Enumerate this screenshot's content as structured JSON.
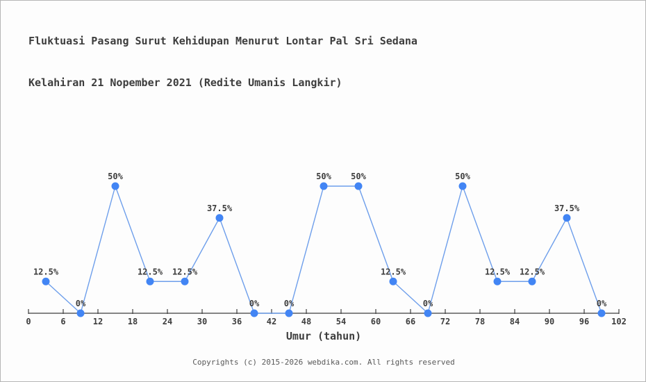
{
  "title": {
    "line1": "Fluktuasi Pasang Surut Kehidupan Menurut Lontar Pal Sri Sedana",
    "line2": "Kelahiran 21 Nopember 2021 (Redite Umanis Langkir)"
  },
  "chart_data": {
    "type": "line",
    "title": "Fluktuasi Pasang Surut Kehidupan Menurut Lontar Pal Sri Sedana Kelahiran 21 Nopember 2021 (Redite Umanis Langkir)",
    "xlabel": "Umur (tahun)",
    "ylabel": "",
    "x": [
      3,
      9,
      15,
      21,
      27,
      33,
      39,
      45,
      51,
      57,
      63,
      69,
      75,
      81,
      87,
      93,
      99
    ],
    "values": [
      12.5,
      0,
      50,
      12.5,
      12.5,
      37.5,
      0,
      0,
      50,
      50,
      12.5,
      0,
      50,
      12.5,
      12.5,
      37.5,
      0
    ],
    "point_labels": [
      "12.5%",
      "0%",
      "50%",
      "12.5%",
      "12.5%",
      "37.5%",
      "0%",
      "0%",
      "50%",
      "50%",
      "12.5%",
      "0%",
      "50%",
      "12.5%",
      "12.5%",
      "37.5%",
      "0%"
    ],
    "x_ticks": [
      0,
      6,
      12,
      18,
      24,
      30,
      36,
      42,
      48,
      54,
      60,
      66,
      72,
      78,
      84,
      90,
      96,
      102
    ],
    "xlim": [
      0,
      102
    ],
    "ylim": [
      0,
      50
    ],
    "grid": false,
    "legend": null,
    "marker_color": "#4285f4",
    "line_color": "#6d9eeb",
    "axis_color": "#3d3d3d"
  },
  "footer": {
    "copyright": "Copyrights (c) 2015-2026 webdika.com. All rights reserved"
  }
}
